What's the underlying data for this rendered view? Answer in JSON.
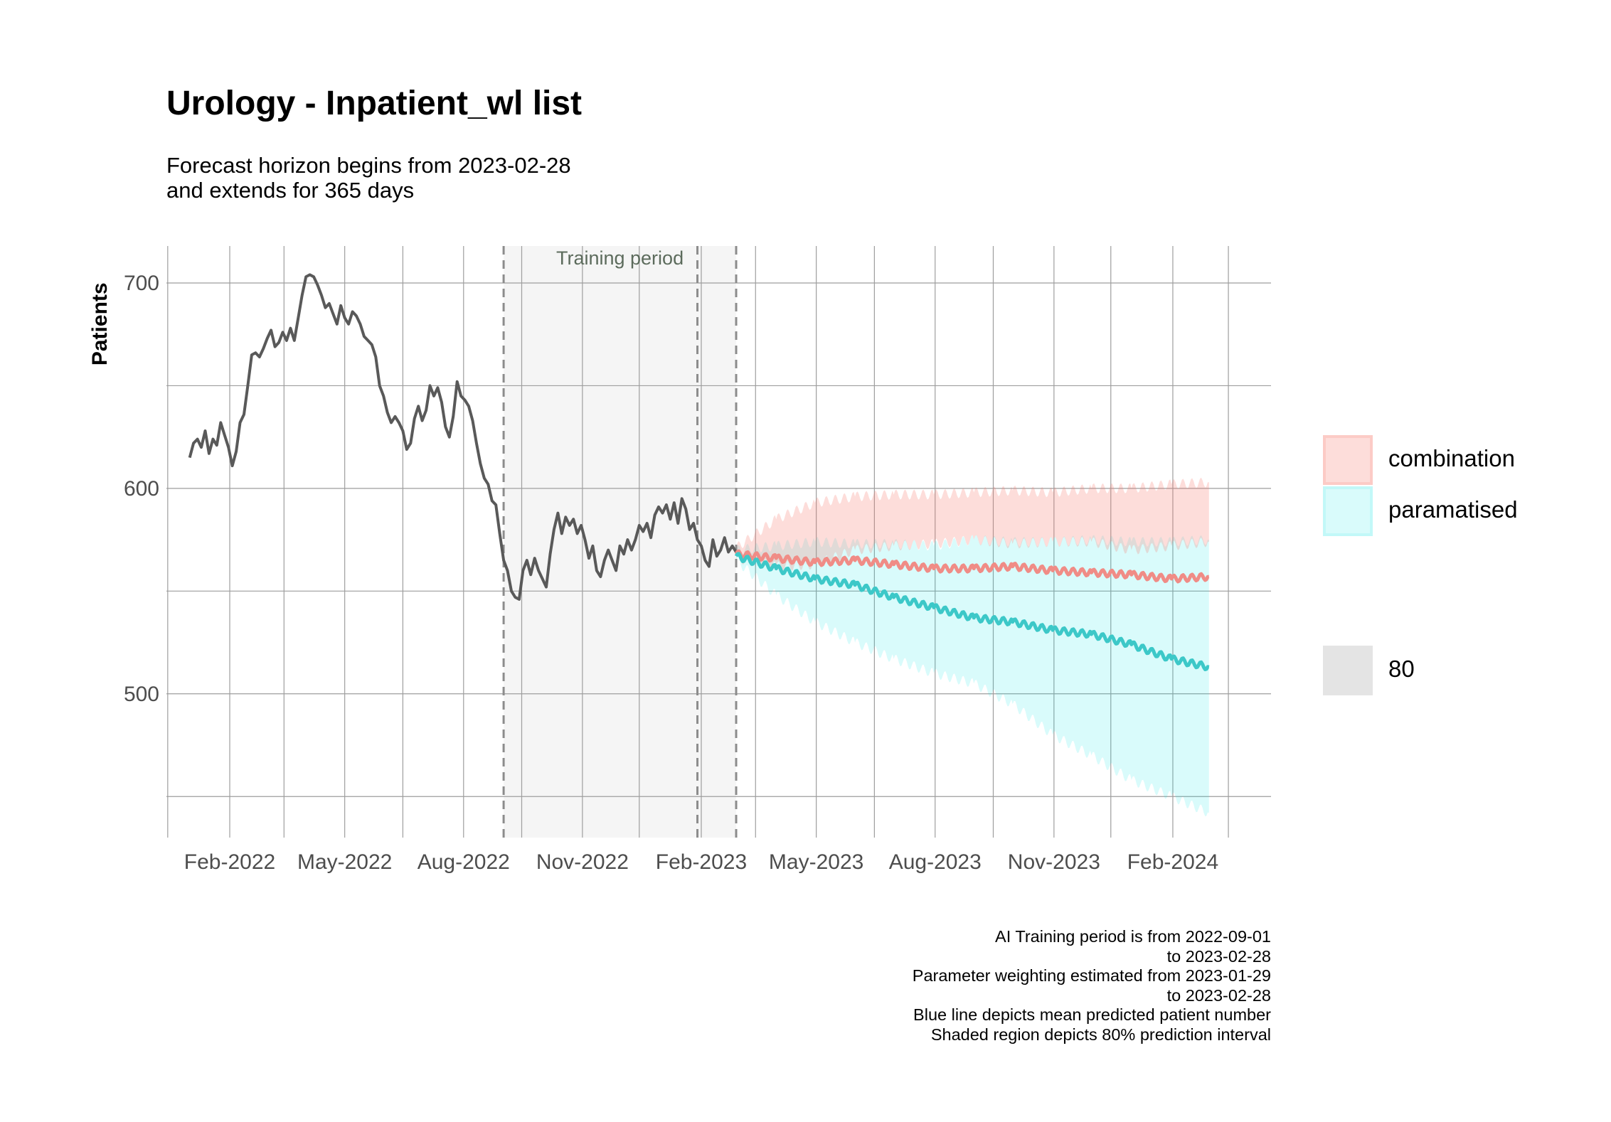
{
  "title": "Urology - Inpatient_wl list",
  "subtitle_line1": "Forecast horizon begins from 2023-02-28",
  "subtitle_line2": "and extends for 365 days",
  "caption": [
    "AI Training period is from 2022-09-01",
    "to 2023-02-28",
    "Parameter weighting estimated from 2023-01-29",
    "to 2023-02-28",
    "Blue line depicts mean predicted patient number",
    "Shaded region depicts 80% prediction interval"
  ],
  "legend": [
    {
      "label": "combination",
      "fill": "#f8766d",
      "alpha": 0.25
    },
    {
      "label": "paramatised",
      "fill": "#00e5e5",
      "alpha": 0.15
    },
    {
      "label": "80",
      "fill": "#bbbbbb",
      "alpha": 0.4
    }
  ],
  "colors": {
    "observed_line": "#595959",
    "combination_line": "#f08c86",
    "paramatised_line": "#3cc8c8",
    "combination_band": "#f8766d",
    "paramatised_band": "#00e5e5",
    "training_shade": "#f5f5f5",
    "grid": "#9e9e9e"
  },
  "chart_data": {
    "type": "line",
    "ylabel": "Patients",
    "xlabel": "",
    "ylim": [
      430,
      718
    ],
    "xlim": [
      "2021-12-14",
      "2024-04-17"
    ],
    "y_ticks": [
      500,
      600,
      700
    ],
    "x_tick_labels": [
      {
        "date": "2022-02-01",
        "label": "Feb-2022"
      },
      {
        "date": "2022-05-01",
        "label": "May-2022"
      },
      {
        "date": "2022-08-01",
        "label": "Aug-2022"
      },
      {
        "date": "2022-11-01",
        "label": "Nov-2022"
      },
      {
        "date": "2023-02-01",
        "label": "Feb-2023"
      },
      {
        "date": "2023-05-01",
        "label": "May-2023"
      },
      {
        "date": "2023-08-01",
        "label": "Aug-2023"
      },
      {
        "date": "2023-11-01",
        "label": "Nov-2023"
      },
      {
        "date": "2024-02-01",
        "label": "Feb-2024"
      }
    ],
    "training_period": {
      "start": "2022-09-01",
      "end": "2023-02-28",
      "label": "Training period"
    },
    "reference_lines": [
      "2022-09-01",
      "2023-01-29",
      "2023-02-28"
    ],
    "series": [
      {
        "name": "observed",
        "points": [
          [
            "2022-01-01",
            615
          ],
          [
            "2022-01-04",
            622
          ],
          [
            "2022-01-07",
            624
          ],
          [
            "2022-01-10",
            620
          ],
          [
            "2022-01-13",
            628
          ],
          [
            "2022-01-16",
            617
          ],
          [
            "2022-01-19",
            624
          ],
          [
            "2022-01-22",
            621
          ],
          [
            "2022-01-25",
            632
          ],
          [
            "2022-01-28",
            626
          ],
          [
            "2022-01-31",
            620
          ],
          [
            "2022-02-03",
            611
          ],
          [
            "2022-02-06",
            618
          ],
          [
            "2022-02-09",
            632
          ],
          [
            "2022-02-12",
            636
          ],
          [
            "2022-02-15",
            650
          ],
          [
            "2022-02-18",
            665
          ],
          [
            "2022-02-21",
            666
          ],
          [
            "2022-02-24",
            664
          ],
          [
            "2022-02-27",
            668
          ],
          [
            "2022-03-02",
            673
          ],
          [
            "2022-03-05",
            677
          ],
          [
            "2022-03-08",
            669
          ],
          [
            "2022-03-11",
            671
          ],
          [
            "2022-03-14",
            676
          ],
          [
            "2022-03-17",
            672
          ],
          [
            "2022-03-20",
            678
          ],
          [
            "2022-03-23",
            672
          ],
          [
            "2022-03-26",
            683
          ],
          [
            "2022-03-29",
            694
          ],
          [
            "2022-04-01",
            703
          ],
          [
            "2022-04-04",
            704
          ],
          [
            "2022-04-07",
            703
          ],
          [
            "2022-04-10",
            699
          ],
          [
            "2022-04-13",
            694
          ],
          [
            "2022-04-16",
            688
          ],
          [
            "2022-04-19",
            690
          ],
          [
            "2022-04-22",
            685
          ],
          [
            "2022-04-25",
            680
          ],
          [
            "2022-04-28",
            689
          ],
          [
            "2022-05-01",
            683
          ],
          [
            "2022-05-04",
            680
          ],
          [
            "2022-05-07",
            686
          ],
          [
            "2022-05-10",
            684
          ],
          [
            "2022-05-13",
            680
          ],
          [
            "2022-05-16",
            674
          ],
          [
            "2022-05-19",
            672
          ],
          [
            "2022-05-22",
            670
          ],
          [
            "2022-05-25",
            664
          ],
          [
            "2022-05-28",
            650
          ],
          [
            "2022-05-31",
            645
          ],
          [
            "2022-06-03",
            637
          ],
          [
            "2022-06-06",
            632
          ],
          [
            "2022-06-09",
            635
          ],
          [
            "2022-06-12",
            632
          ],
          [
            "2022-06-15",
            628
          ],
          [
            "2022-06-18",
            619
          ],
          [
            "2022-06-21",
            622
          ],
          [
            "2022-06-24",
            634
          ],
          [
            "2022-06-27",
            640
          ],
          [
            "2022-06-30",
            633
          ],
          [
            "2022-07-03",
            638
          ],
          [
            "2022-07-06",
            650
          ],
          [
            "2022-07-09",
            645
          ],
          [
            "2022-07-12",
            649
          ],
          [
            "2022-07-15",
            642
          ],
          [
            "2022-07-18",
            630
          ],
          [
            "2022-07-21",
            625
          ],
          [
            "2022-07-24",
            635
          ],
          [
            "2022-07-27",
            652
          ],
          [
            "2022-07-30",
            645
          ],
          [
            "2022-08-02",
            643
          ],
          [
            "2022-08-05",
            640
          ],
          [
            "2022-08-08",
            633
          ],
          [
            "2022-08-11",
            622
          ],
          [
            "2022-08-14",
            612
          ],
          [
            "2022-08-17",
            605
          ],
          [
            "2022-08-20",
            602
          ],
          [
            "2022-08-23",
            594
          ],
          [
            "2022-08-26",
            592
          ],
          [
            "2022-08-29",
            578
          ],
          [
            "2022-09-01",
            565
          ],
          [
            "2022-09-04",
            560
          ],
          [
            "2022-09-07",
            550
          ],
          [
            "2022-09-10",
            547
          ],
          [
            "2022-09-13",
            546
          ],
          [
            "2022-09-16",
            560
          ],
          [
            "2022-09-19",
            565
          ],
          [
            "2022-09-22",
            558
          ],
          [
            "2022-09-25",
            566
          ],
          [
            "2022-09-28",
            560
          ],
          [
            "2022-10-01",
            556
          ],
          [
            "2022-10-04",
            552
          ],
          [
            "2022-10-07",
            568
          ],
          [
            "2022-10-10",
            580
          ],
          [
            "2022-10-13",
            588
          ],
          [
            "2022-10-16",
            578
          ],
          [
            "2022-10-19",
            586
          ],
          [
            "2022-10-22",
            582
          ],
          [
            "2022-10-25",
            585
          ],
          [
            "2022-10-28",
            578
          ],
          [
            "2022-10-31",
            582
          ],
          [
            "2022-11-03",
            575
          ],
          [
            "2022-11-06",
            566
          ],
          [
            "2022-11-09",
            572
          ],
          [
            "2022-11-12",
            560
          ],
          [
            "2022-11-15",
            557
          ],
          [
            "2022-11-18",
            565
          ],
          [
            "2022-11-21",
            570
          ],
          [
            "2022-11-24",
            565
          ],
          [
            "2022-11-27",
            560
          ],
          [
            "2022-11-30",
            572
          ],
          [
            "2022-12-03",
            568
          ],
          [
            "2022-12-06",
            575
          ],
          [
            "2022-12-09",
            570
          ],
          [
            "2022-12-12",
            575
          ],
          [
            "2022-12-15",
            582
          ],
          [
            "2022-12-18",
            579
          ],
          [
            "2022-12-21",
            583
          ],
          [
            "2022-12-24",
            576
          ],
          [
            "2022-12-27",
            587
          ],
          [
            "2022-12-30",
            591
          ],
          [
            "2023-01-02",
            588
          ],
          [
            "2023-01-05",
            592
          ],
          [
            "2023-01-08",
            585
          ],
          [
            "2023-01-11",
            593
          ],
          [
            "2023-01-14",
            583
          ],
          [
            "2023-01-17",
            595
          ],
          [
            "2023-01-20",
            590
          ],
          [
            "2023-01-23",
            580
          ],
          [
            "2023-01-26",
            583
          ],
          [
            "2023-01-29",
            575
          ],
          [
            "2023-02-01",
            572
          ],
          [
            "2023-02-04",
            565
          ],
          [
            "2023-02-07",
            562
          ],
          [
            "2023-02-10",
            575
          ],
          [
            "2023-02-13",
            567
          ],
          [
            "2023-02-16",
            570
          ],
          [
            "2023-02-19",
            576
          ],
          [
            "2023-02-22",
            569
          ],
          [
            "2023-02-25",
            572
          ],
          [
            "2023-02-28",
            569
          ]
        ]
      },
      {
        "name": "combination",
        "points": [
          [
            "2023-02-28",
            568
          ],
          [
            "2023-03-31",
            566
          ],
          [
            "2023-04-30",
            564
          ],
          [
            "2023-05-31",
            565
          ],
          [
            "2023-06-30",
            563
          ],
          [
            "2023-07-31",
            561
          ],
          [
            "2023-08-31",
            561
          ],
          [
            "2023-09-30",
            562
          ],
          [
            "2023-10-31",
            560
          ],
          [
            "2023-11-30",
            559
          ],
          [
            "2023-12-31",
            558
          ],
          [
            "2024-01-31",
            556
          ],
          [
            "2024-02-29",
            557
          ]
        ],
        "lower": [
          [
            "2023-02-28",
            566
          ],
          [
            "2023-03-31",
            562
          ],
          [
            "2023-04-30",
            563
          ],
          [
            "2023-05-31",
            570
          ],
          [
            "2023-06-30",
            572
          ],
          [
            "2023-07-31",
            573
          ],
          [
            "2023-08-31",
            575
          ],
          [
            "2023-09-30",
            573
          ],
          [
            "2023-10-31",
            574
          ],
          [
            "2023-11-30",
            574
          ],
          [
            "2023-12-31",
            570
          ],
          [
            "2024-01-31",
            572
          ],
          [
            "2024-02-29",
            574
          ]
        ],
        "upper": [
          [
            "2023-02-28",
            571
          ],
          [
            "2023-03-31",
            585
          ],
          [
            "2023-04-30",
            593
          ],
          [
            "2023-05-31",
            596
          ],
          [
            "2023-06-30",
            597
          ],
          [
            "2023-07-31",
            597
          ],
          [
            "2023-08-31",
            598
          ],
          [
            "2023-09-30",
            599
          ],
          [
            "2023-10-31",
            598
          ],
          [
            "2023-11-30",
            600
          ],
          [
            "2023-12-31",
            600
          ],
          [
            "2024-01-31",
            602
          ],
          [
            "2024-02-29",
            603
          ]
        ]
      },
      {
        "name": "paramatised",
        "points": [
          [
            "2023-02-28",
            567
          ],
          [
            "2023-03-31",
            561
          ],
          [
            "2023-04-30",
            556
          ],
          [
            "2023-05-31",
            553
          ],
          [
            "2023-06-30",
            547
          ],
          [
            "2023-07-31",
            542
          ],
          [
            "2023-08-31",
            537
          ],
          [
            "2023-09-30",
            535
          ],
          [
            "2023-10-31",
            531
          ],
          [
            "2023-11-30",
            529
          ],
          [
            "2023-12-31",
            524
          ],
          [
            "2024-01-31",
            517
          ],
          [
            "2024-02-29",
            513
          ]
        ],
        "lower": [
          [
            "2023-02-28",
            565
          ],
          [
            "2023-03-31",
            548
          ],
          [
            "2023-04-30",
            535
          ],
          [
            "2023-05-31",
            525
          ],
          [
            "2023-06-30",
            517
          ],
          [
            "2023-07-31",
            510
          ],
          [
            "2023-08-31",
            505
          ],
          [
            "2023-09-30",
            495
          ],
          [
            "2023-10-31",
            480
          ],
          [
            "2023-11-30",
            470
          ],
          [
            "2023-12-31",
            458
          ],
          [
            "2024-01-31",
            450
          ],
          [
            "2024-02-29",
            442
          ]
        ],
        "upper": [
          [
            "2023-02-28",
            570
          ],
          [
            "2023-03-31",
            572
          ],
          [
            "2023-04-30",
            574
          ],
          [
            "2023-05-31",
            573
          ],
          [
            "2023-06-30",
            573
          ],
          [
            "2023-07-31",
            572
          ],
          [
            "2023-08-31",
            575
          ],
          [
            "2023-09-30",
            574
          ],
          [
            "2023-10-31",
            574
          ],
          [
            "2023-11-30",
            575
          ],
          [
            "2023-12-31",
            574
          ],
          [
            "2024-01-31",
            574
          ],
          [
            "2024-02-29",
            575
          ]
        ]
      }
    ]
  }
}
